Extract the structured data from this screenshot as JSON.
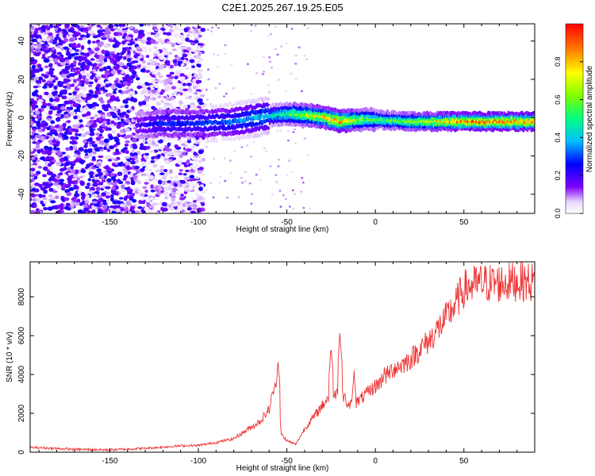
{
  "figure_title": "C2E1.2025.267.19.25.E05",
  "chart_data": [
    {
      "type": "heatmap",
      "title": "C2E1.2025.267.19.25.E05",
      "xlabel": "Height of straight line (km)",
      "ylabel": "Frequency (Hz)",
      "xlim": [
        -195,
        90
      ],
      "ylim": [
        -50,
        49
      ],
      "xticks": [
        -150,
        -100,
        -50,
        0,
        50
      ],
      "yticks": [
        -40,
        -20,
        0,
        20,
        40
      ],
      "description_series": [
        {
          "name": "noise region",
          "x_range": [
            -195,
            -97
          ],
          "frequency_spread": [
            -50,
            49
          ],
          "amplitude_range": [
            0.05,
            0.25
          ]
        },
        {
          "name": "signal ridge",
          "x": [
            -135,
            -120,
            -100,
            -80,
            -60,
            -50,
            -40,
            -30,
            -20,
            -10,
            0,
            20,
            50,
            90
          ],
          "frequency": [
            -4,
            -3,
            -3,
            -2,
            1,
            2,
            1.5,
            0.5,
            -2,
            -1,
            -1,
            -2,
            -2,
            -2
          ],
          "peak_amplitude": [
            0.2,
            0.3,
            0.3,
            0.35,
            0.45,
            0.6,
            0.7,
            0.8,
            0.9,
            0.7,
            0.6,
            0.7,
            0.95,
            0.95
          ]
        }
      ],
      "colorbar": {
        "label": "Normalized spectral amplitude",
        "range": [
          0,
          1
        ],
        "ticks": [
          0.0,
          0.2,
          0.4,
          0.6,
          0.8
        ],
        "tick_labels": [
          "0.0",
          "0.2",
          "0.4",
          "0.6",
          "0.8"
        ]
      }
    },
    {
      "type": "line",
      "title": "",
      "xlabel": "Height of straight line (km)",
      "ylabel": "SNR (10 * v/v)",
      "xlim": [
        -195,
        90
      ],
      "ylim": [
        0,
        9800
      ],
      "xticks": [
        -150,
        -100,
        -50,
        0,
        50
      ],
      "yticks": [
        0,
        2000,
        4000,
        6000,
        8000
      ],
      "series": [
        {
          "name": "SNR",
          "color": "#ee3333",
          "x": [
            -195,
            -170,
            -150,
            -130,
            -110,
            -100,
            -90,
            -80,
            -75,
            -70,
            -65,
            -60,
            -57,
            -55,
            -53,
            -50,
            -45,
            -40,
            -35,
            -30,
            -25,
            -20,
            -15,
            -10,
            -5,
            0,
            5,
            10,
            15,
            20,
            25,
            30,
            35,
            40,
            45,
            50,
            55,
            60,
            70,
            80,
            90
          ],
          "y": [
            250,
            150,
            120,
            200,
            330,
            350,
            500,
            700,
            1000,
            1300,
            1600,
            2200,
            3400,
            2500,
            900,
            600,
            400,
            1200,
            1800,
            2400,
            3000,
            3200,
            2400,
            2600,
            3000,
            3400,
            3800,
            4300,
            4500,
            4800,
            5300,
            5700,
            6300,
            6900,
            7600,
            8400,
            8600,
            8700,
            8700,
            8800,
            8750
          ],
          "spikes": [
            {
              "x": -55,
              "y": 4700
            },
            {
              "x": -25,
              "y": 5400
            },
            {
              "x": -20,
              "y": 6100
            },
            {
              "x": -12,
              "y": 4100
            },
            {
              "x": 5,
              "y": 4400
            }
          ]
        }
      ]
    }
  ]
}
